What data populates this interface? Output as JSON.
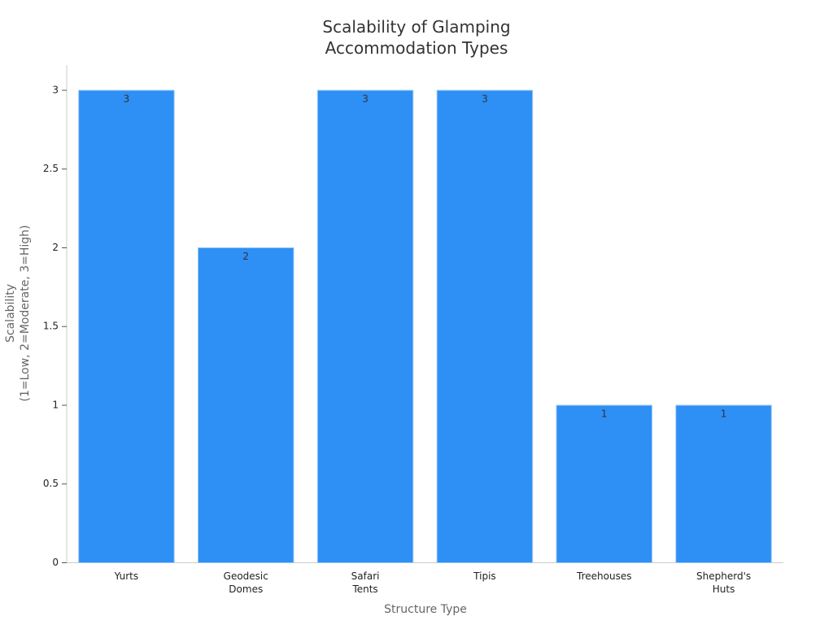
{
  "chart_data": {
    "type": "bar",
    "title": "Scalability of Glamping\nAccommodation Types",
    "x_label": "Structure Type",
    "y_label": "Scalability\n(1=Low, 2=Moderate, 3=High)",
    "categories": [
      "Yurts",
      "Geodesic\nDomes",
      "Safari\nTents",
      "Tipis",
      "Treehouses",
      "Shepherd's\nHuts"
    ],
    "values": [
      3,
      2,
      3,
      3,
      1,
      1
    ],
    "color": "#2e8ff5",
    "ylim": [
      0,
      3.16
    ],
    "yticks": [
      0,
      0.5,
      1,
      1.5,
      2,
      2.5,
      3
    ],
    "grid": false
  }
}
